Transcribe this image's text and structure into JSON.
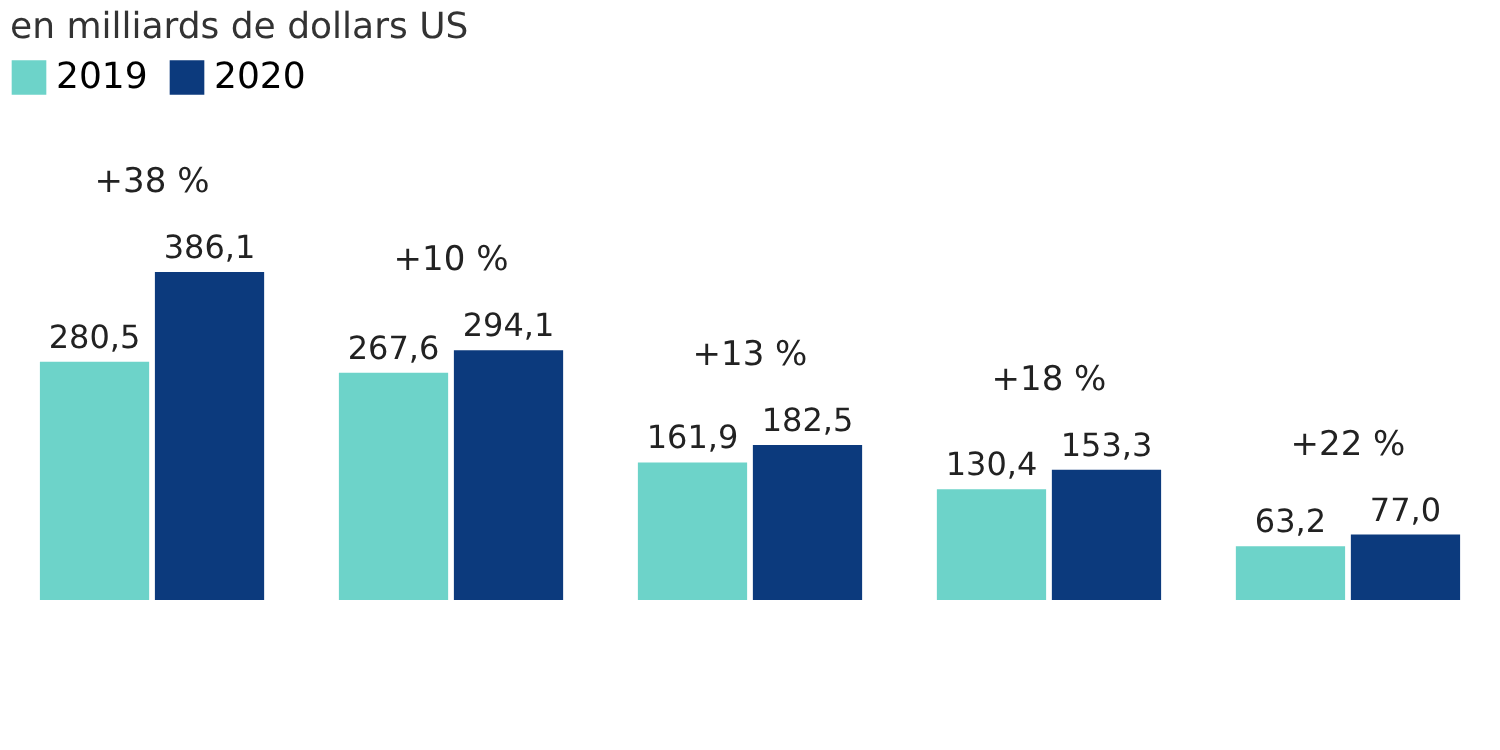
{
  "chart_data": {
    "type": "bar",
    "subtitle": "en milliards de dollars US",
    "categories": [
      null,
      null,
      null,
      null,
      null
    ],
    "series": [
      {
        "name": "2019",
        "color": "#6dd3c9",
        "values": [
          280.5,
          267.6,
          161.9,
          130.4,
          63.2
        ],
        "value_labels": [
          "280,5",
          "267,6",
          "161,9",
          "130,4",
          "63,2"
        ]
      },
      {
        "name": "2020",
        "color": "#0c3a7d",
        "values": [
          386.1,
          294.1,
          182.5,
          153.3,
          77.0
        ],
        "value_labels": [
          "386,1",
          "294,1",
          "182,5",
          "153,3",
          "77,0"
        ]
      }
    ],
    "annotations": [
      "+38 %",
      "+10 %",
      "+13 %",
      "+18 %",
      "+22 %"
    ],
    "legend": "top",
    "tick_labels": false
  }
}
